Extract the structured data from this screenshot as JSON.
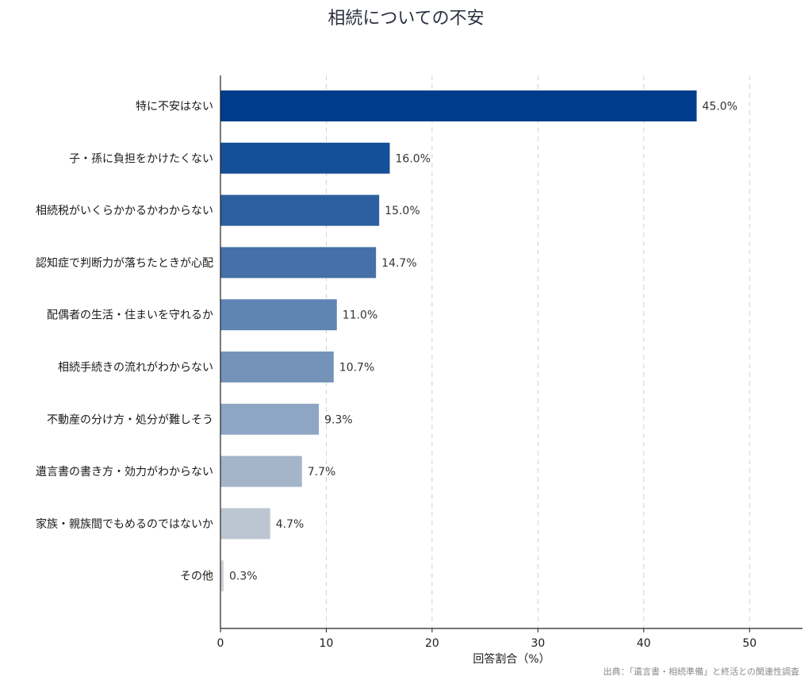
{
  "chart_data": {
    "type": "bar",
    "orientation": "horizontal",
    "title": "相続についての不安",
    "xlabel": "回答割合（%）",
    "ylabel": "",
    "xlim": [
      0,
      55
    ],
    "xticks": [
      0,
      10,
      20,
      30,
      40,
      50
    ],
    "grid": "x-dashed",
    "categories": [
      "特に不安はない",
      "子・孫に負担をかけたくない",
      "相続税がいくらかかるかわからない",
      "認知症で判断力が落ちたときが心配",
      "配偶者の生活・住まいを守れるか",
      "相続手続きの流れがわからない",
      "不動産の分け方・処分が難しそう",
      "遺言書の書き方・効力がわからない",
      "家族・親族間でもめるのではないか",
      "その他"
    ],
    "values": [
      45.0,
      16.0,
      15.0,
      14.7,
      11.0,
      10.7,
      9.3,
      7.7,
      4.7,
      0.3
    ],
    "value_labels": [
      "45.0%",
      "16.0%",
      "15.0%",
      "14.7%",
      "11.0%",
      "10.7%",
      "9.3%",
      "7.7%",
      "4.7%",
      "0.3%"
    ],
    "colors": [
      "#003c8c",
      "#164f99",
      "#2b5f9f",
      "#4570a8",
      "#5f85b4",
      "#7593b9",
      "#8ea6c3",
      "#a4b5ca",
      "#bcc6d2",
      "#cfd3d9"
    ],
    "source": "出典：「遺言書・相続準備」と終活との関連性調査"
  }
}
